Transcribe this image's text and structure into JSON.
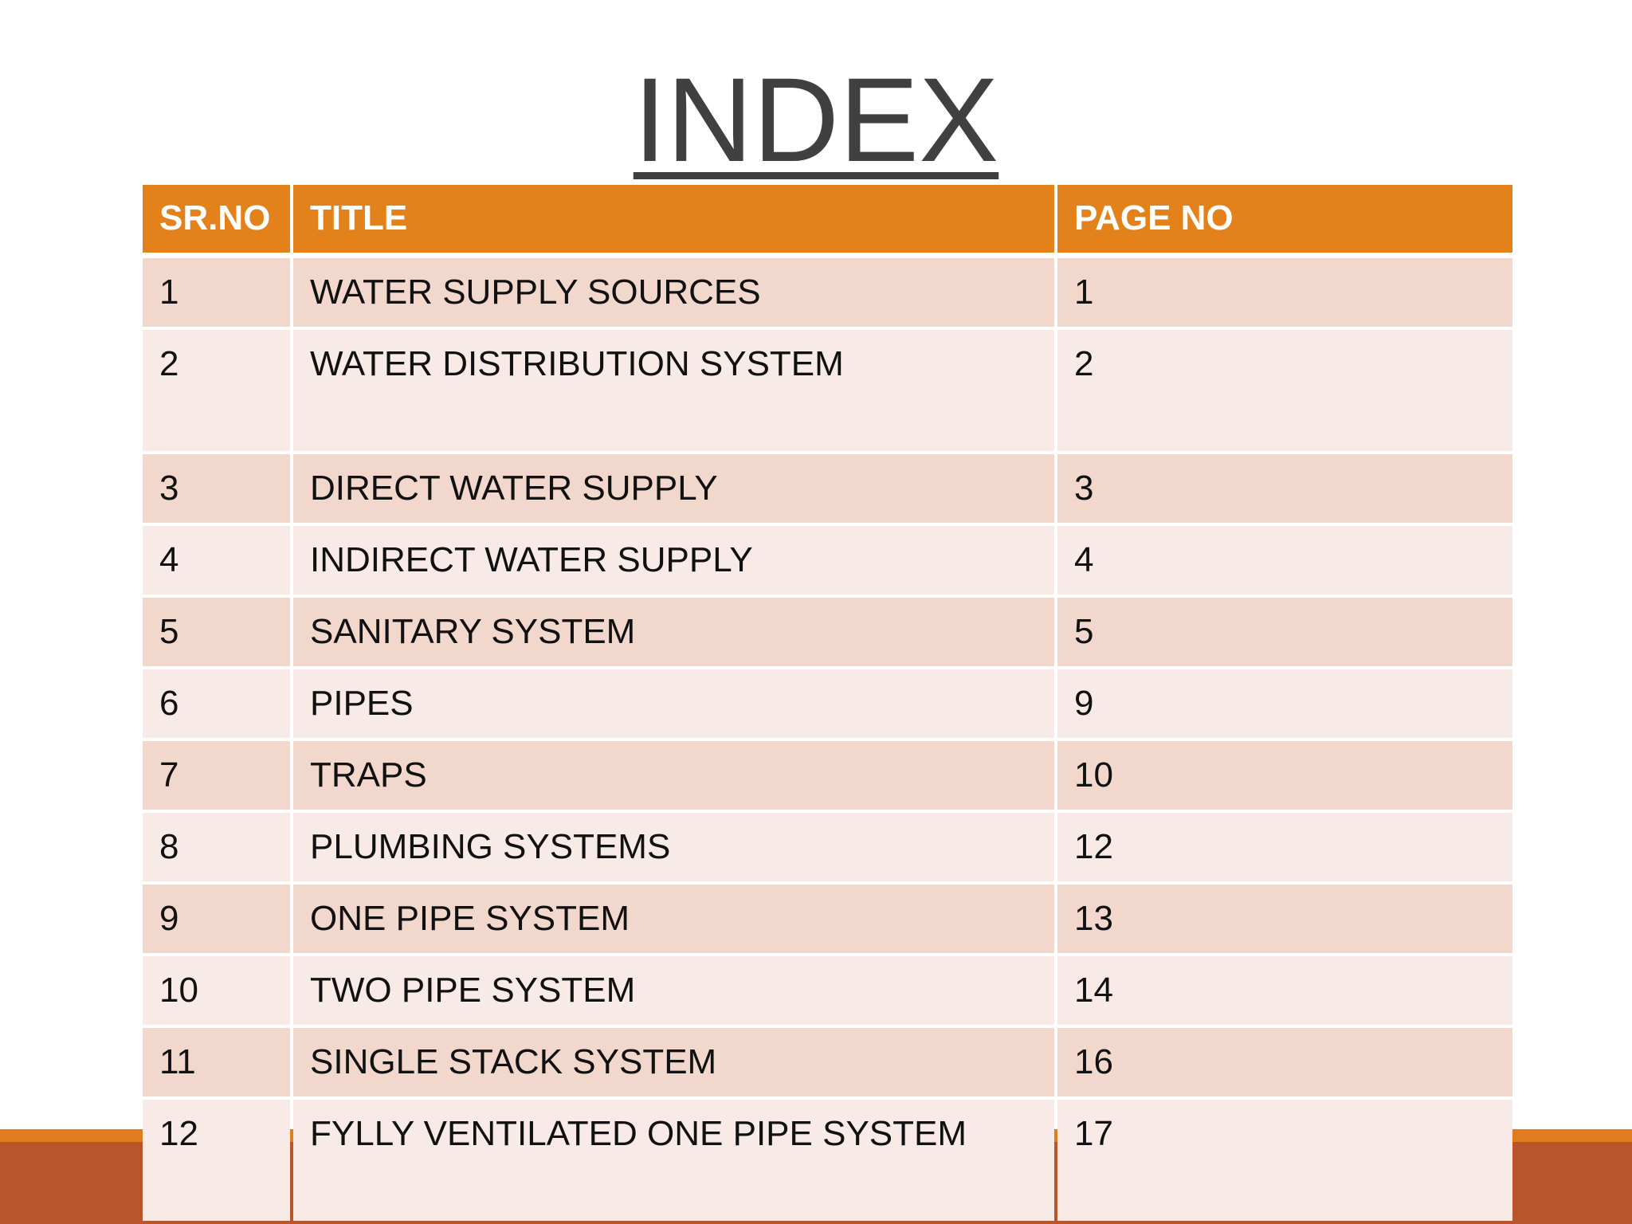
{
  "title": "INDEX",
  "table": {
    "header": [
      "SR.NO",
      "TITLE",
      "PAGE NO"
    ],
    "rows": [
      [
        1,
        "WATER SUPPLY SOURCES",
        1
      ],
      [
        2,
        "WATER DISTRIBUTION SYSTEM",
        2
      ],
      [
        3,
        "DIRECT WATER SUPPLY",
        3
      ],
      [
        4,
        "INDIRECT WATER SUPPLY",
        4
      ],
      [
        5,
        "SANITARY SYSTEM",
        5
      ],
      [
        6,
        "PIPES",
        9
      ],
      [
        7,
        "TRAPS",
        10
      ],
      [
        8,
        "PLUMBING SYSTEMS",
        12
      ],
      [
        9,
        "ONE PIPE SYSTEM",
        13
      ],
      [
        10,
        "TWO PIPE SYSTEM",
        14
      ],
      [
        11,
        "SINGLE STACK SYSTEM",
        16
      ],
      [
        12,
        "FYLLY VENTILATED ONE PIPE SYSTEM",
        17
      ]
    ]
  }
}
